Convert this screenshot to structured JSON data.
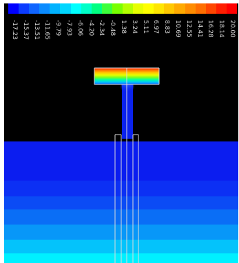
{
  "colorbar": {
    "colors": [
      "#0000ff",
      "#0b3bff",
      "#0f64ff",
      "#0a8bff",
      "#00b2ff",
      "#00d6ff",
      "#00ffff",
      "#00ffc8",
      "#00ff82",
      "#3cff3c",
      "#78ff00",
      "#b4ff00",
      "#e6ff00",
      "#ffff00",
      "#ffe600",
      "#ffc800",
      "#ffaa00",
      "#ff8c00",
      "#ff6e00",
      "#ff4600",
      "#ff1e00",
      "#ff0000"
    ],
    "labels": [
      "-17.23",
      "-15.37",
      "-13.51",
      "-11.65",
      "-9.79",
      "-7.93",
      "-6.06",
      "-4.20",
      "-2.34",
      "-0.48",
      "1.38",
      "3.24",
      "5.11",
      "6.97",
      "8.83",
      "10.69",
      "12.55",
      "14.41",
      "16.28",
      "18.14",
      "20.00"
    ]
  },
  "scene": {
    "background_color": "#000000",
    "domain_bands": [
      {
        "name": "band-1",
        "color": "#0b1df0"
      },
      {
        "name": "band-2",
        "color": "#0c30f4"
      },
      {
        "name": "band-3",
        "color": "#0b4bf5"
      },
      {
        "name": "band-4",
        "color": "#0a6ef6"
      },
      {
        "name": "band-5",
        "color": "#0897f8"
      },
      {
        "name": "band-6",
        "color": "#04c3fb"
      },
      {
        "name": "band-7",
        "color": "#00f0ff"
      }
    ],
    "stem_color": "#0a22ee",
    "grid_line_color": "#dcdcdc",
    "cap_gradient": [
      "#ff1e00",
      "#ff7a00",
      "#ffc800",
      "#e6ff00",
      "#78ff20",
      "#00ffa0",
      "#00c8ff",
      "#1e5aff"
    ]
  }
}
